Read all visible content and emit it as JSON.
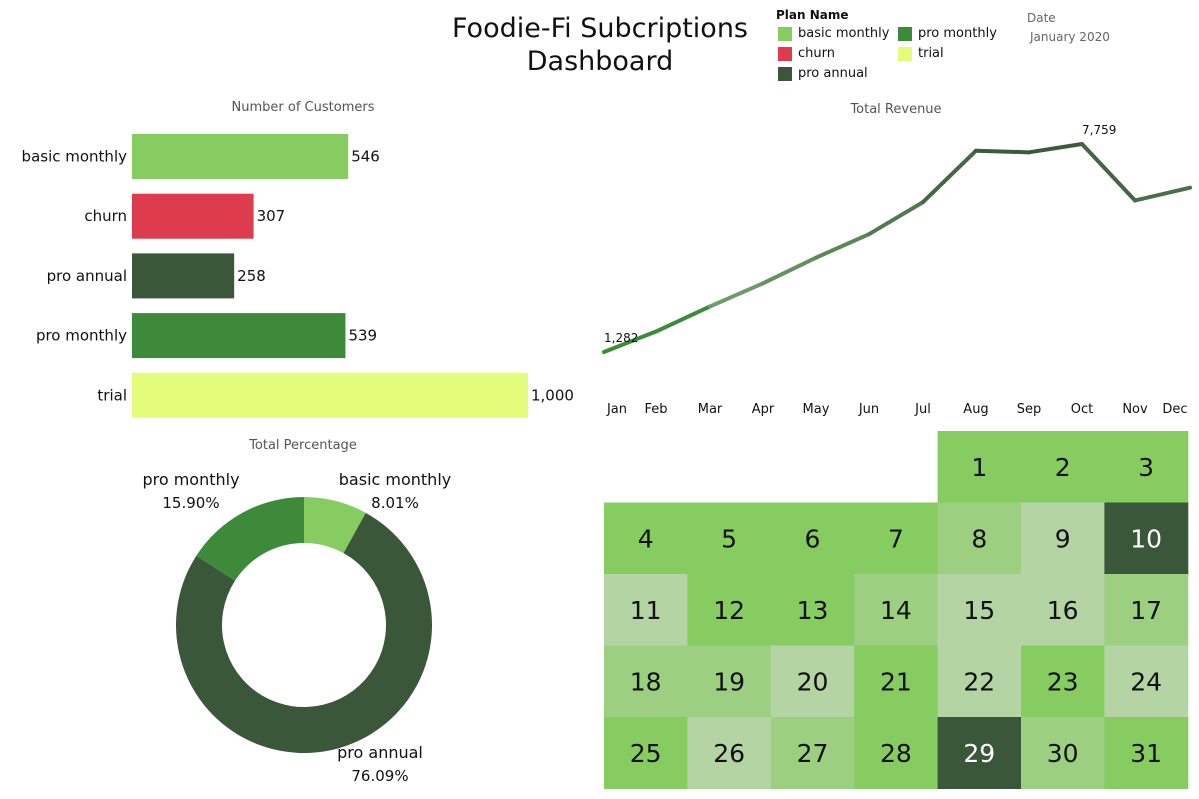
{
  "header": {
    "title_line1": "Foodie-Fi Subcriptions",
    "title_line2": "Dashboard",
    "legend_title": "Plan Name",
    "legend": [
      {
        "label": "basic monthly",
        "color": "#86cc60"
      },
      {
        "label": "pro monthly",
        "color": "#3d8b3a"
      },
      {
        "label": "churn",
        "color": "#dd3c4d"
      },
      {
        "label": "trial",
        "color": "#e3fd7b"
      },
      {
        "label": "pro annual",
        "color": "#3b573a"
      }
    ],
    "date_label": "Date",
    "date_value": "January 2020"
  },
  "chart_data": [
    {
      "type": "bar",
      "title": "Number of Customers",
      "orientation": "horizontal",
      "categories": [
        "basic monthly",
        "churn",
        "pro annual",
        "pro monthly",
        "trial"
      ],
      "values": [
        546,
        307,
        258,
        539,
        1000
      ],
      "value_labels": [
        "546",
        "307",
        "258",
        "539",
        "1,000"
      ],
      "colors": [
        "#86cc60",
        "#dd3c4d",
        "#3b573a",
        "#3d8b3a",
        "#e3fd7b"
      ],
      "xlim": [
        0,
        1000
      ]
    },
    {
      "type": "line",
      "title": "Total Revenue",
      "x": [
        "Jan",
        "Feb",
        "Mar",
        "Apr",
        "May",
        "Jun",
        "Jul",
        "Aug",
        "Sep",
        "Oct",
        "Nov",
        "Dec"
      ],
      "values": [
        1282,
        1920,
        2700,
        3420,
        4220,
        4950,
        5950,
        7550,
        7500,
        7759,
        6000,
        6400
      ],
      "annotations": [
        {
          "index": 0,
          "label": "1,282"
        },
        {
          "index": 9,
          "label": "7,759"
        }
      ],
      "ylim": [
        1282,
        7759
      ],
      "color_low": "#7fb67b",
      "color_high": "#3b573a"
    },
    {
      "type": "pie",
      "title": "Total Percentage",
      "donut": true,
      "slices": [
        {
          "label": "basic monthly",
          "value": 8.01,
          "pct_label": "8.01%",
          "color": "#86cc60"
        },
        {
          "label": "pro annual",
          "value": 76.09,
          "pct_label": "76.09%",
          "color": "#3b573a"
        },
        {
          "label": "pro monthly",
          "value": 15.9,
          "pct_label": "15.90%",
          "color": "#3d8b3a"
        }
      ]
    },
    {
      "type": "heatmap",
      "title": "",
      "month": "January 2020",
      "first_weekday": 4,
      "days": [
        {
          "day": "1",
          "level": 1
        },
        {
          "day": "2",
          "level": 1
        },
        {
          "day": "3",
          "level": 1
        },
        {
          "day": "4",
          "level": 1
        },
        {
          "day": "5",
          "level": 1
        },
        {
          "day": "6",
          "level": 1
        },
        {
          "day": "7",
          "level": 1
        },
        {
          "day": "8",
          "level": 2
        },
        {
          "day": "9",
          "level": 3
        },
        {
          "day": "10",
          "level": 4
        },
        {
          "day": "11",
          "level": 3
        },
        {
          "day": "12",
          "level": 1
        },
        {
          "day": "13",
          "level": 1
        },
        {
          "day": "14",
          "level": 2
        },
        {
          "day": "15",
          "level": 3
        },
        {
          "day": "16",
          "level": 3
        },
        {
          "day": "17",
          "level": 2
        },
        {
          "day": "18",
          "level": 2
        },
        {
          "day": "19",
          "level": 2
        },
        {
          "day": "20",
          "level": 3
        },
        {
          "day": "21",
          "level": 1
        },
        {
          "day": "22",
          "level": 3
        },
        {
          "day": "23",
          "level": 1
        },
        {
          "day": "24",
          "level": 3
        },
        {
          "day": "25",
          "level": 1
        },
        {
          "day": "26",
          "level": 3
        },
        {
          "day": "27",
          "level": 2
        },
        {
          "day": "28",
          "level": 1
        },
        {
          "day": "29",
          "level": 4
        },
        {
          "day": "30",
          "level": 2
        },
        {
          "day": "31",
          "level": 1
        }
      ],
      "level_colors": [
        "#ffffff",
        "#86cc60",
        "#9ccf80",
        "#b4d4a4",
        "#3b573a"
      ]
    }
  ]
}
